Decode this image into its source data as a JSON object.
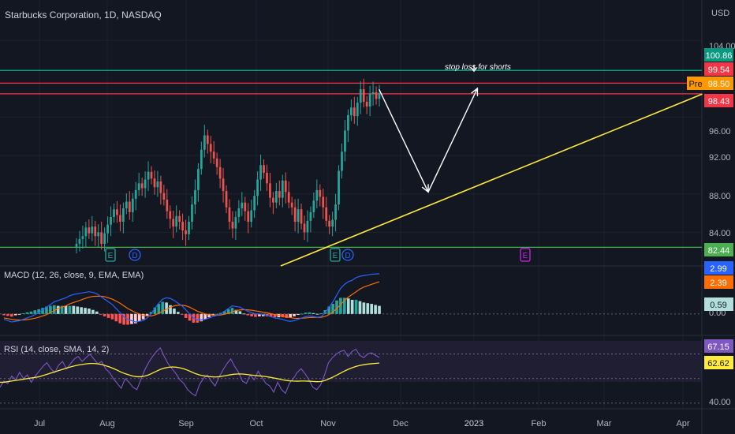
{
  "header": {
    "symbol": "Starbucks Corporation, 1D, NASDAQ",
    "currency": "USD"
  },
  "annotation": {
    "text": "stop loss for shorts"
  },
  "price_axis": {
    "ticks": [
      "104.00",
      "96.00",
      "92.00",
      "88.00",
      "84.00"
    ],
    "badges": [
      {
        "text": "100.86",
        "color": "#089981"
      },
      {
        "text": "99.54",
        "color": "#f23645"
      },
      {
        "text": "Pre",
        "color": "#ff9800"
      },
      {
        "text": "98.50",
        "color": "#ff9800"
      },
      {
        "text": "98.43",
        "color": "#f23645"
      },
      {
        "text": "82.44",
        "color": "#4caf50"
      }
    ]
  },
  "events": [
    "E",
    "D",
    "E",
    "D",
    "E"
  ],
  "macd": {
    "label": "MACD (12, 26, close, 9, EMA, EMA)",
    "ticks": [
      "2.99",
      "0.00"
    ],
    "badges": [
      {
        "text": "2.99",
        "color": "#2962ff"
      },
      {
        "text": "2.39",
        "color": "#ff6d00"
      },
      {
        "text": "0.59",
        "color": "#b2dfdb"
      }
    ]
  },
  "rsi": {
    "label": "RSI (14, close, SMA, 14, 2)",
    "ticks": [
      "40.00"
    ],
    "badges": [
      {
        "text": "67.15",
        "color": "#7e57c2"
      },
      {
        "text": "62.62",
        "color": "#ffeb3b"
      }
    ]
  },
  "time_axis": [
    "Jul",
    "Aug",
    "Sep",
    "Oct",
    "Nov",
    "Dec",
    "2023",
    "Feb",
    "Mar",
    "Apr"
  ],
  "colors": {
    "up": "#26a69a",
    "down": "#ef5350",
    "bg": "#131722",
    "grid": "#1e222d"
  },
  "chart_data": {
    "type": "candlestick",
    "title": "Starbucks Corporation, 1D, NASDAQ",
    "y_range": [
      80.5,
      104.5
    ],
    "levels": [
      {
        "price": 100.86,
        "color": "#089981"
      },
      {
        "price": 99.54,
        "color": "#f23645"
      },
      {
        "price": 98.43,
        "color": "#f23645"
      },
      {
        "price": 82.44,
        "color": "#4caf50"
      }
    ],
    "trendline": {
      "from": {
        "date": "2022-10-12",
        "price": 80.5
      },
      "to": {
        "date": "2023-04-10",
        "price": 98.4
      },
      "color": "#ffeb3b"
    },
    "arrows": [
      {
        "from": {
          "date": "2022-11-23",
          "price": 98.9
        },
        "to": {
          "date": "2022-12-14",
          "price": 88.2
        }
      },
      {
        "from": {
          "date": "2022-12-14",
          "price": 88.2
        },
        "to": {
          "date": "2023-01-04",
          "price": 99.0
        }
      }
    ],
    "closes": [
      82.8,
      83.3,
      83.6,
      84.5,
      83.9,
      84.6,
      83.6,
      84.0,
      82.8,
      83.9,
      84.8,
      85.6,
      86.4,
      85.8,
      85.1,
      86.5,
      87.2,
      86.1,
      87.5,
      88.4,
      89.1,
      88.6,
      89.5,
      90.3,
      89.6,
      88.7,
      89.3,
      88.1,
      87.4,
      86.2,
      85.4,
      84.6,
      85.7,
      85.1,
      84.2,
      83.8,
      85.1,
      86.9,
      88.4,
      90.6,
      92.6,
      94.1,
      93.2,
      92.4,
      91.7,
      90.8,
      89.6,
      88.3,
      86.6,
      85.1,
      84.4,
      85.6,
      86.5,
      87.1,
      86.2,
      85.1,
      86.3,
      87.8,
      89.5,
      91.0,
      90.2,
      89.1,
      87.6,
      87.1,
      88.3,
      87.6,
      89.4,
      88.2,
      87.1,
      86.6,
      85.1,
      86.4,
      84.9,
      84.0,
      85.2,
      86.1,
      87.3,
      88.4,
      87.7,
      86.6,
      85.2,
      84.6,
      85.3,
      86.9,
      90.4,
      92.4,
      94.6,
      96.2,
      97.0,
      96.1,
      97.5,
      98.9,
      97.6,
      97.1,
      98.4,
      98.6,
      97.9,
      98.5
    ],
    "macd": {
      "macd_line": [
        -0.4,
        -0.5,
        -0.6,
        -0.55,
        -0.5,
        -0.4,
        -0.3,
        -0.2,
        -0.05,
        0.1,
        0.3,
        0.5,
        0.7,
        0.9,
        1.0,
        1.1,
        1.2,
        1.35,
        1.45,
        1.5,
        1.55,
        1.6,
        1.65,
        1.6,
        1.5,
        1.3,
        1.1,
        0.9,
        0.7,
        0.4,
        0.1,
        -0.2,
        -0.4,
        -0.5,
        -0.6,
        -0.55,
        -0.5,
        -0.3,
        0.0,
        0.4,
        0.8,
        1.1,
        1.2,
        1.15,
        1.0,
        0.8,
        0.6,
        0.3,
        0.0,
        -0.3,
        -0.45,
        -0.45,
        -0.4,
        -0.3,
        -0.2,
        -0.1,
        0.0,
        0.2,
        0.4,
        0.6,
        0.55,
        0.5,
        0.35,
        0.2,
        0.1,
        0.0,
        0.0,
        -0.05,
        -0.1,
        -0.2,
        -0.3,
        -0.35,
        -0.4,
        -0.5,
        -0.55,
        -0.5,
        -0.4,
        -0.3,
        -0.2,
        -0.15,
        -0.2,
        -0.25,
        -0.2,
        0.1,
        0.5,
        0.9,
        1.4,
        1.9,
        2.2,
        2.4,
        2.5,
        2.7,
        2.8,
        2.85,
        2.9,
        2.95,
        2.97,
        2.99
      ],
      "signal_line": [
        -0.3,
        -0.35,
        -0.4,
        -0.45,
        -0.45,
        -0.45,
        -0.42,
        -0.38,
        -0.32,
        -0.25,
        -0.15,
        -0.05,
        0.1,
        0.25,
        0.4,
        0.5,
        0.6,
        0.75,
        0.85,
        0.95,
        1.05,
        1.15,
        1.25,
        1.3,
        1.32,
        1.32,
        1.28,
        1.2,
        1.1,
        0.95,
        0.8,
        0.6,
        0.4,
        0.25,
        0.1,
        0.0,
        -0.1,
        -0.15,
        -0.15,
        -0.08,
        0.05,
        0.2,
        0.35,
        0.5,
        0.6,
        0.65,
        0.65,
        0.6,
        0.5,
        0.35,
        0.2,
        0.1,
        0.0,
        -0.05,
        -0.08,
        -0.1,
        -0.08,
        -0.02,
        0.05,
        0.15,
        0.25,
        0.3,
        0.32,
        0.3,
        0.28,
        0.22,
        0.18,
        0.12,
        0.08,
        0.02,
        -0.05,
        -0.1,
        -0.15,
        -0.2,
        -0.27,
        -0.32,
        -0.33,
        -0.32,
        -0.3,
        -0.27,
        -0.26,
        -0.26,
        -0.25,
        -0.18,
        -0.05,
        0.15,
        0.4,
        0.7,
        1.0,
        1.25,
        1.45,
        1.65,
        1.85,
        2.0,
        2.1,
        2.2,
        2.3,
        2.39
      ],
      "histogram_last": 0.59
    },
    "rsi": {
      "rsi_line": [
        43,
        48,
        46,
        52,
        49,
        55,
        50,
        53,
        47,
        52,
        56,
        60,
        63,
        58,
        55,
        61,
        64,
        58,
        62,
        66,
        68,
        64,
        67,
        70,
        66,
        62,
        64,
        58,
        55,
        50,
        46,
        42,
        50,
        47,
        43,
        41,
        49,
        57,
        63,
        68,
        72,
        75,
        68,
        62,
        58,
        54,
        49,
        46,
        41,
        38,
        36,
        45,
        50,
        53,
        48,
        44,
        51,
        57,
        62,
        66,
        60,
        55,
        48,
        46,
        53,
        49,
        56,
        51,
        46,
        44,
        39,
        47,
        41,
        38,
        46,
        50,
        55,
        58,
        54,
        49,
        43,
        41,
        45,
        53,
        63,
        67,
        70,
        72,
        73,
        68,
        72,
        74,
        69,
        67,
        70,
        71,
        69,
        67.15
      ],
      "rsi_sma": [
        47,
        47,
        47.5,
        48,
        48.5,
        49,
        49.5,
        50,
        50.5,
        51,
        51.5,
        52.5,
        53.5,
        54.5,
        55.5,
        56.5,
        57.5,
        58.5,
        59.5,
        60.3,
        61,
        61.5,
        62,
        62.3,
        62.3,
        62,
        61.5,
        60.5,
        59.5,
        58.2,
        56.8,
        55.2,
        54,
        53,
        52,
        51.5,
        51.5,
        52,
        53,
        54.5,
        56,
        57.5,
        58.5,
        59.2,
        59.5,
        59.3,
        58.8,
        58,
        56.8,
        55.4,
        54,
        53,
        52.3,
        51.8,
        51.5,
        51.3,
        51.5,
        52,
        52.6,
        53.2,
        53.6,
        53.8,
        53.7,
        53.4,
        53,
        52.6,
        52.3,
        52,
        51.6,
        51.1,
        50.5,
        49.9,
        49.2,
        48.6,
        48.2,
        48,
        47.9,
        48,
        48,
        47.9,
        47.7,
        47.5,
        47.6,
        48.3,
        49.6,
        51,
        52.6,
        54.3,
        56,
        57.5,
        58.8,
        59.9,
        60.7,
        61.3,
        61.8,
        62.1,
        62.4,
        62.62
      ]
    }
  }
}
